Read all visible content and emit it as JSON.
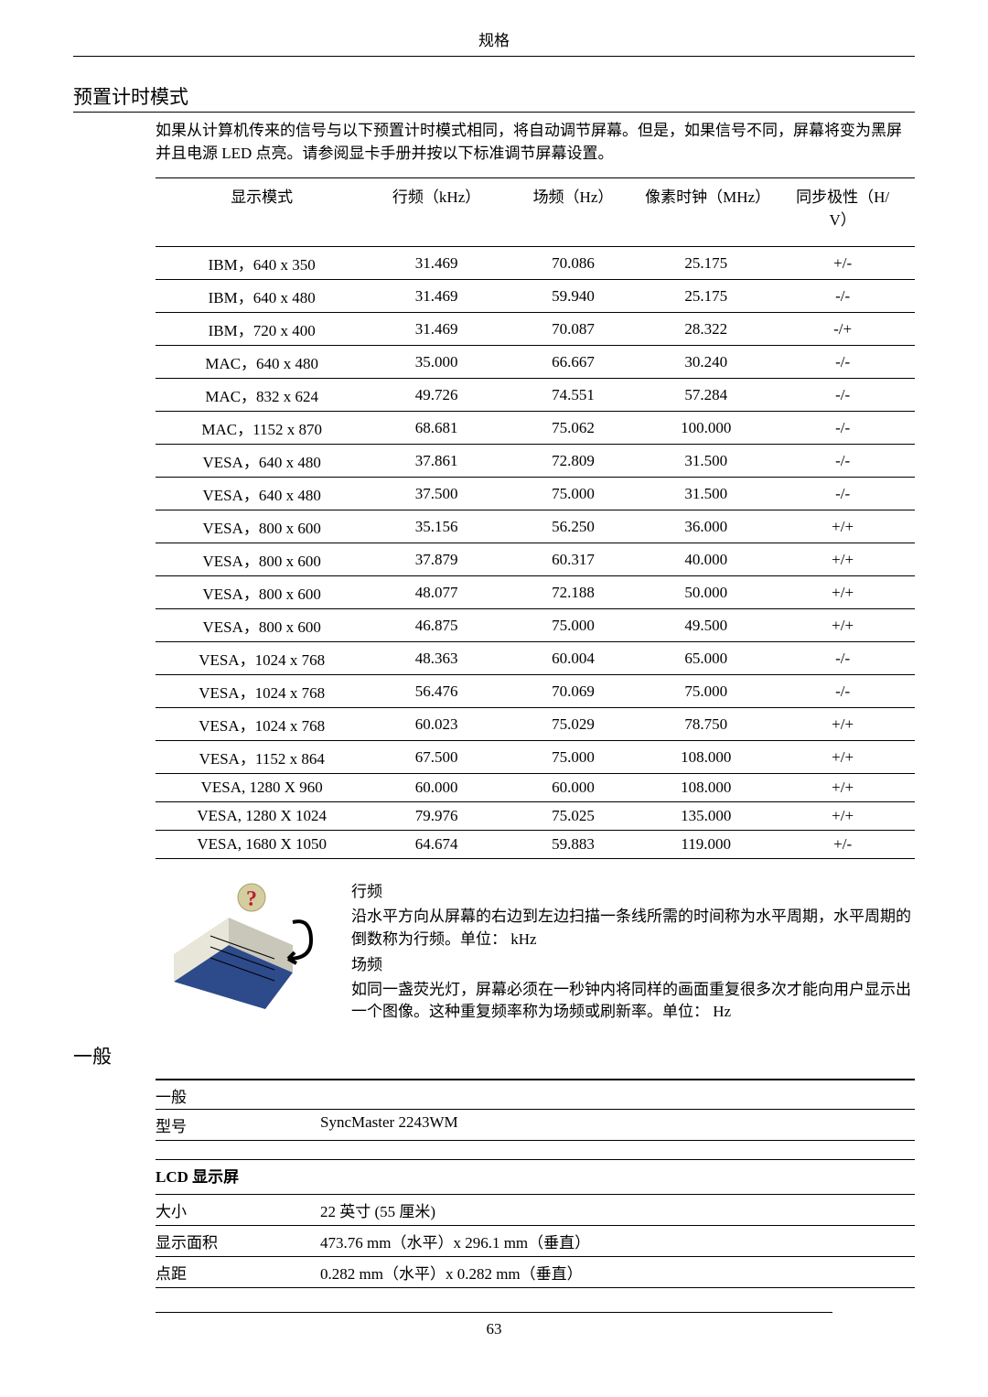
{
  "topTitle": "规格",
  "section1Title": "预置计时模式",
  "intro": "如果从计算机传来的信号与以下预置计时模式相同，将自动调节屏幕。但是，如果信号不同，屏幕将变为黑屏并且电源 LED 点亮。请参阅显卡手册并按以下标准调节屏幕设置。",
  "headers": {
    "mode": "显示模式",
    "hfreq": "行频（kHz）",
    "vfreq": "场频（Hz）",
    "pixclk": "像素时钟（MHz）",
    "sync1": "同步极性（H/",
    "sync2": "V）"
  },
  "rows": [
    {
      "mode": "IBM，640 x 350",
      "h": "31.469",
      "v": "70.086",
      "p": "25.175",
      "s": "+/-"
    },
    {
      "mode": "IBM，640 x 480",
      "h": "31.469",
      "v": "59.940",
      "p": "25.175",
      "s": "-/-"
    },
    {
      "mode": "IBM，720 x 400",
      "h": "31.469",
      "v": "70.087",
      "p": "28.322",
      "s": "-/+"
    },
    {
      "mode": "MAC，640 x 480",
      "h": "35.000",
      "v": "66.667",
      "p": "30.240",
      "s": "-/-"
    },
    {
      "mode": "MAC，832 x 624",
      "h": "49.726",
      "v": "74.551",
      "p": "57.284",
      "s": "-/-"
    },
    {
      "mode": "MAC，1152 x 870",
      "h": "68.681",
      "v": "75.062",
      "p": "100.000",
      "s": "-/-"
    },
    {
      "mode": "VESA，640 x 480",
      "h": "37.861",
      "v": "72.809",
      "p": "31.500",
      "s": "-/-"
    },
    {
      "mode": "VESA，640 x 480",
      "h": "37.500",
      "v": "75.000",
      "p": "31.500",
      "s": "-/-"
    },
    {
      "mode": "VESA，800 x 600",
      "h": "35.156",
      "v": "56.250",
      "p": "36.000",
      "s": "+/+"
    },
    {
      "mode": "VESA，800 x 600",
      "h": "37.879",
      "v": "60.317",
      "p": "40.000",
      "s": "+/+"
    },
    {
      "mode": "VESA，800 x 600",
      "h": "48.077",
      "v": "72.188",
      "p": "50.000",
      "s": "+/+"
    },
    {
      "mode": "VESA，800 x 600",
      "h": "46.875",
      "v": "75.000",
      "p": "49.500",
      "s": "+/+"
    },
    {
      "mode": "VESA，1024 x 768",
      "h": "48.363",
      "v": "60.004",
      "p": "65.000",
      "s": "-/-"
    },
    {
      "mode": "VESA，1024 x 768",
      "h": "56.476",
      "v": "70.069",
      "p": "75.000",
      "s": "-/-"
    },
    {
      "mode": "VESA，1024 x 768",
      "h": "60.023",
      "v": "75.029",
      "p": "78.750",
      "s": "+/+"
    },
    {
      "mode": "VESA，1152 x 864",
      "h": "67.500",
      "v": "75.000",
      "p": "108.000",
      "s": "+/+"
    },
    {
      "mode": "VESA, 1280 X 960",
      "h": "60.000",
      "v": "60.000",
      "p": "108.000",
      "s": "+/+"
    },
    {
      "mode": "VESA, 1280 X 1024",
      "h": "79.976",
      "v": "75.025",
      "p": "135.000",
      "s": "+/+"
    },
    {
      "mode": "VESA, 1680 X 1050",
      "h": "64.674",
      "v": "59.883",
      "p": "119.000",
      "s": "+/-"
    }
  ],
  "def": {
    "h1": "行频",
    "hbody": "沿水平方向从屏幕的右边到左边扫描一条线所需的时间称为水平周期，水平周期的倒数称为行频。单位： kHz",
    "h2": "场频",
    "vbody": "如同一盏荧光灯，屏幕必须在一秒钟内将同样的画面重复很多次才能向用户显示出一个图像。这种重复频率称为场频或刷新率。单位： Hz"
  },
  "section2Title": "一般",
  "general": {
    "genhead": "一般",
    "modelK": "型号",
    "modelV": "SyncMaster 2243WM",
    "lcdhead": "LCD 显示屏",
    "sizeK": "大小",
    "sizeV": "22 英寸 (55 厘米)",
    "areaK": "显示面积",
    "areaV": "473.76 mm（水平）x 296.1 mm（垂直）",
    "pitchK": "点距",
    "pitchV": "0.282 mm（水平）x 0.282 mm（垂直）"
  },
  "pageNumber": "63"
}
